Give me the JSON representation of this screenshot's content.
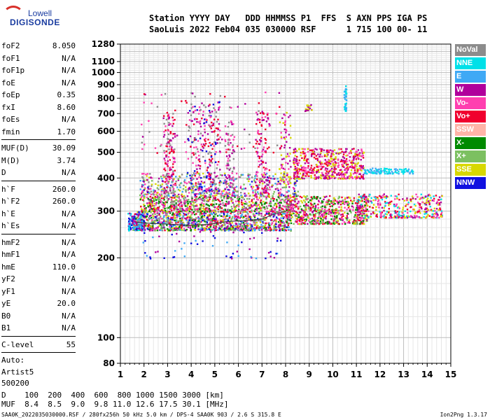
{
  "logo": {
    "top": "Lowell",
    "main": "DIGISONDE"
  },
  "header": {
    "line1": "Station YYYY DAY   DDD HHMMSS P1  FFS  S AXN PPS IGA PS",
    "line2": "SaoLuis 2022 Feb04 035 030000 RSF      1 715 100 00- 11"
  },
  "params": {
    "group1": [
      {
        "label": "foF2",
        "value": "8.050"
      },
      {
        "label": "foF1",
        "value": "N/A"
      },
      {
        "label": "foF1p",
        "value": "N/A"
      },
      {
        "label": "foE",
        "value": "N/A"
      },
      {
        "label": "foEp",
        "value": "0.35"
      },
      {
        "label": "fxI",
        "value": "8.60"
      },
      {
        "label": "foEs",
        "value": "N/A"
      },
      {
        "label": "fmin",
        "value": "1.70"
      }
    ],
    "group2": [
      {
        "label": "MUF(D)",
        "value": "30.09"
      },
      {
        "label": "M(D)",
        "value": "3.74"
      },
      {
        "label": "D",
        "value": "N/A"
      }
    ],
    "group3": [
      {
        "label": "h`F",
        "value": "260.0"
      },
      {
        "label": "h`F2",
        "value": "260.0"
      },
      {
        "label": "h`E",
        "value": "N/A"
      },
      {
        "label": "h`Es",
        "value": "N/A"
      }
    ],
    "group4": [
      {
        "label": "hmF2",
        "value": "N/A"
      },
      {
        "label": "hmF1",
        "value": "N/A"
      },
      {
        "label": "hmE",
        "value": "110.0"
      },
      {
        "label": "yF2",
        "value": "N/A"
      },
      {
        "label": "yF1",
        "value": "N/A"
      },
      {
        "label": "yE",
        "value": "20.0"
      },
      {
        "label": "B0",
        "value": "N/A"
      },
      {
        "label": "B1",
        "value": "N/A"
      }
    ],
    "clevel": {
      "label": "C-level",
      "value": "55"
    },
    "auto": [
      "Auto:",
      "Artist5",
      "500200"
    ]
  },
  "legend": [
    {
      "label": "NoVal",
      "color": "#8c8c8c"
    },
    {
      "label": "NNE",
      "color": "#00e0e8"
    },
    {
      "label": "E",
      "color": "#3fa9f5"
    },
    {
      "label": "W",
      "color": "#b0009c"
    },
    {
      "label": "Vo-",
      "color": "#ff3fb0"
    },
    {
      "label": "Vo+",
      "color": "#f0002e"
    },
    {
      "label": "SSW",
      "color": "#ffb4a8"
    },
    {
      "label": "X-",
      "color": "#008a00"
    },
    {
      "label": "X+",
      "color": "#7cc060"
    },
    {
      "label": "SSE",
      "color": "#d8d800"
    },
    {
      "label": "NNW",
      "color": "#1010e0"
    }
  ],
  "footer": {
    "line1": "D    100  200  400  600  800 1000 1500 3000 [km]",
    "line2": "MUF  8.4  8.5  9.0  9.8 11.0 12.6 17.5 30.1 [MHz]",
    "fileinfo": "SAA0K_2022035030000.RSF / 280fx256h 50 kHz 5.0 km / DPS-4 SAA0K 903 / 2.6 S 315.8 E",
    "version": "Ion2Png 1.3.17"
  },
  "chart_data": {
    "type": "scatter",
    "xlim": [
      1,
      15
    ],
    "ylim": [
      80,
      1280
    ],
    "yscale": "log",
    "x_ticks": [
      "1",
      "2",
      "3",
      "4",
      "5",
      "6",
      "7",
      "8",
      "9",
      "10",
      "11",
      "12",
      "13",
      "14",
      "15"
    ],
    "y_ticks": [
      {
        "v": 80,
        "label": "80"
      },
      {
        "v": 100,
        "label": "100"
      },
      {
        "v": 200,
        "label": "200"
      },
      {
        "v": 300,
        "label": "300"
      },
      {
        "v": 400,
        "label": "400"
      },
      {
        "v": 500,
        "label": "500"
      },
      {
        "v": 600,
        "label": "600"
      },
      {
        "v": 700,
        "label": "700"
      },
      {
        "v": 800,
        "label": "800"
      },
      {
        "v": 900,
        "label": "900"
      },
      {
        "v": 1000,
        "label": "1000"
      },
      {
        "v": 1100,
        "label": "1100"
      },
      {
        "v": 1280,
        "label": "1280"
      }
    ],
    "grid": true,
    "legend_position": "right",
    "trace": {
      "name": "",
      "color": "#404040",
      "points": [
        [
          1.7,
          272
        ],
        [
          2.2,
          270
        ],
        [
          3.0,
          268
        ],
        [
          4.0,
          265
        ],
        [
          4.8,
          268
        ],
        [
          5.5,
          274
        ],
        [
          6.2,
          276
        ],
        [
          7.0,
          280
        ],
        [
          7.5,
          292
        ],
        [
          8.05,
          300
        ]
      ]
    },
    "clusters": [
      {
        "x": [
          1.5,
          8.2
        ],
        "y": [
          255,
          300
        ],
        "n": 1100,
        "colors": [
          "#f0002e",
          "#ff3fb0",
          "#b0009c",
          "#008a00",
          "#7cc060",
          "#d8d800",
          "#8c8c8c",
          "#1010e0",
          "#3fa9f5"
        ]
      },
      {
        "x": [
          1.3,
          2.0
        ],
        "y": [
          255,
          300
        ],
        "n": 120,
        "colors": [
          "#1010e0",
          "#3fa9f5",
          "#00e0e8",
          "#b0009c"
        ]
      },
      {
        "x": [
          1.8,
          8.3
        ],
        "y": [
          300,
          345
        ],
        "n": 750,
        "colors": [
          "#b0009c",
          "#ff3fb0",
          "#f0002e",
          "#d8d800",
          "#7cc060",
          "#008a00",
          "#8c8c8c"
        ]
      },
      {
        "x": [
          1.8,
          8.5
        ],
        "y": [
          345,
          420
        ],
        "n": 520,
        "colors": [
          "#b0009c",
          "#ff3fb0",
          "#1010e0",
          "#3fa9f5",
          "#d8d800",
          "#7cc060",
          "#8c8c8c"
        ]
      },
      {
        "x": [
          8.0,
          11.5
        ],
        "y": [
          270,
          345
        ],
        "n": 650,
        "colors": [
          "#b0009c",
          "#ff3fb0",
          "#f0002e",
          "#d8d800",
          "#7cc060",
          "#008a00"
        ]
      },
      {
        "x": [
          8.3,
          11.3
        ],
        "y": [
          400,
          520
        ],
        "n": 550,
        "colors": [
          "#b0009c",
          "#ff3fb0",
          "#f0002e",
          "#d8d800"
        ]
      },
      {
        "x": [
          11.0,
          14.6
        ],
        "y": [
          285,
          350
        ],
        "n": 380,
        "colors": [
          "#b0009c",
          "#ff3fb0",
          "#f0002e",
          "#00e0e8",
          "#d8d800"
        ]
      },
      {
        "x": [
          11.3,
          13.4
        ],
        "y": [
          418,
          438
        ],
        "n": 110,
        "colors": [
          "#00e0e8",
          "#3fa9f5"
        ]
      },
      {
        "x": [
          2.8,
          3.3
        ],
        "y": [
          350,
          720
        ],
        "n": 140,
        "colors": [
          "#b0009c",
          "#ff3fb0",
          "#f0002e",
          "#8c8c8c"
        ]
      },
      {
        "x": [
          3.8,
          5.2
        ],
        "y": [
          360,
          780
        ],
        "n": 230,
        "colors": [
          "#b0009c",
          "#ff3fb0",
          "#f0002e",
          "#8c8c8c",
          "#1010e0"
        ]
      },
      {
        "x": [
          5.4,
          5.8
        ],
        "y": [
          350,
          660
        ],
        "n": 90,
        "colors": [
          "#b0009c",
          "#ff3fb0",
          "#8c8c8c"
        ]
      },
      {
        "x": [
          6.7,
          7.3
        ],
        "y": [
          350,
          720
        ],
        "n": 120,
        "colors": [
          "#b0009c",
          "#ff3fb0",
          "#f0002e"
        ]
      },
      {
        "x": [
          7.7,
          8.2
        ],
        "y": [
          380,
          720
        ],
        "n": 70,
        "colors": [
          "#b0009c",
          "#ff3fb0",
          "#d8d800"
        ]
      },
      {
        "x": [
          1.8,
          8.0
        ],
        "y": [
          200,
          255
        ],
        "n": 60,
        "colors": [
          "#1010e0",
          "#3fa9f5",
          "#b0009c"
        ]
      },
      {
        "x": [
          1.8,
          8.0
        ],
        "y": [
          500,
          850
        ],
        "n": 90,
        "colors": [
          "#b0009c",
          "#ff3fb0",
          "#8c8c8c",
          "#f0002e"
        ]
      },
      {
        "x": [
          8.8,
          9.1
        ],
        "y": [
          720,
          760
        ],
        "n": 25,
        "colors": [
          "#d8d800",
          "#b0009c"
        ]
      },
      {
        "x": [
          10.45,
          10.55
        ],
        "y": [
          720,
          900
        ],
        "n": 40,
        "colors": [
          "#00e0e8",
          "#3fa9f5"
        ]
      }
    ]
  }
}
